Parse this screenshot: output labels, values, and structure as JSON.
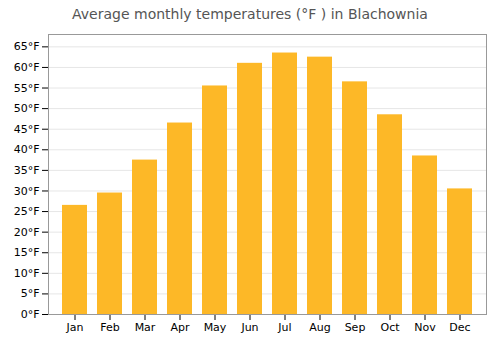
{
  "chart_data": {
    "type": "bar",
    "title": "Average monthly temperatures (°F ) in Blachownia",
    "categories": [
      "Jan",
      "Feb",
      "Mar",
      "Apr",
      "May",
      "Jun",
      "Jul",
      "Aug",
      "Sep",
      "Oct",
      "Nov",
      "Dec"
    ],
    "values": [
      26.5,
      29.5,
      37.5,
      46.5,
      55.5,
      61.0,
      63.5,
      62.5,
      56.5,
      48.5,
      38.5,
      30.5
    ],
    "color": "#FDB827",
    "ylim": [
      0,
      68
    ],
    "yticks": [
      {
        "value": 0,
        "label": "0°F"
      },
      {
        "value": 5,
        "label": "5°F"
      },
      {
        "value": 10,
        "label": "10°F"
      },
      {
        "value": 15,
        "label": "15°F"
      },
      {
        "value": 20,
        "label": "20°F"
      },
      {
        "value": 25,
        "label": "25°F"
      },
      {
        "value": 30,
        "label": "30°F"
      },
      {
        "value": 35,
        "label": "35°F"
      },
      {
        "value": 40,
        "label": "40°F"
      },
      {
        "value": 45,
        "label": "45°F"
      },
      {
        "value": 50,
        "label": "50°F"
      },
      {
        "value": 55,
        "label": "55°F"
      },
      {
        "value": 60,
        "label": "60°F"
      },
      {
        "value": 65,
        "label": "65°F"
      }
    ],
    "grid": true
  }
}
